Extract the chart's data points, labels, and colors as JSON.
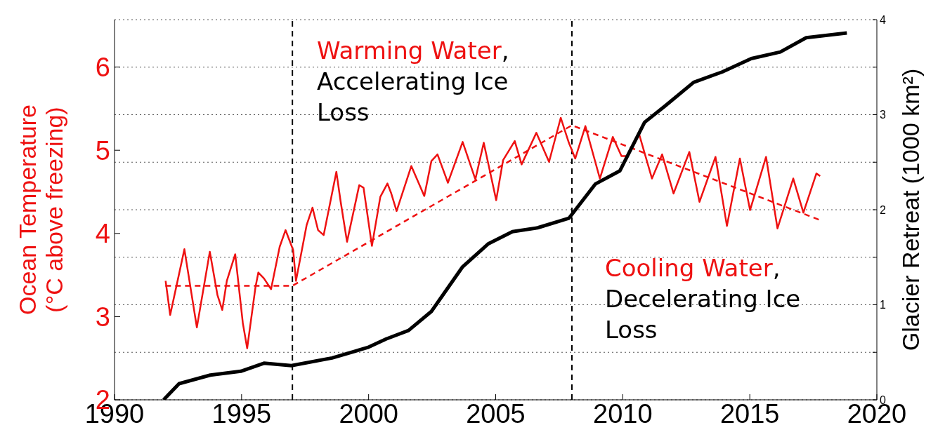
{
  "chart_data": {
    "type": "line",
    "ylabel": "Ocean Temperature\n(°C above freezing)",
    "y2label": "Glacier Retreat (1000 km²)",
    "xlim": [
      1990,
      2020
    ],
    "xticks": [
      1990,
      1995,
      2000,
      2005,
      2010,
      2015,
      2020
    ],
    "ylim": [
      2,
      6.57
    ],
    "yticks": [
      2,
      3,
      4,
      5,
      6
    ],
    "y2lim": [
      0,
      4
    ],
    "y2ticks": [
      0,
      {
        "value": 0.5,
        "label": null
      },
      1,
      {
        "value": 1.5,
        "label": null
      },
      2,
      {
        "value": 2.5,
        "label": null
      },
      3,
      {
        "value": 3.5,
        "label": null
      },
      4
    ],
    "grid": "y",
    "line_style": "solid",
    "series": [
      {
        "color": "#ee1111",
        "x": [
          1992.01,
          1992.19,
          1992.75,
          1993.24,
          1993.75,
          1994.05,
          1994.24,
          1994.42,
          1994.75,
          1995.05,
          1995.22,
          1995.55,
          1995.66,
          1995.88,
          1996.16,
          1996.5,
          1996.73,
          1997.03,
          1997.14,
          1997.56,
          1997.79,
          1998.01,
          1998.23,
          1998.73,
          1998.9,
          1999.15,
          1999.63,
          1999.8,
          2000.13,
          2000.46,
          2000.74,
          2000.88,
          2001.1,
          2001.68,
          2002.19,
          2002.47,
          2002.71,
          2003.12,
          2003.7,
          2004.2,
          2004.53,
          2005.02,
          2005.29,
          2005.75,
          2006.02,
          2006.6,
          2007.1,
          2007.56,
          2007.88,
          2008.13,
          2008.53,
          2009.1,
          2009.61,
          2009.95,
          2010.18,
          2010.63,
          2011.15,
          2011.55,
          2012.0,
          2012.62,
          2013.02,
          2013.65,
          2014.1,
          2014.61,
          2015.01,
          2015.64,
          2016.09,
          2016.71,
          2017.11,
          2017.62,
          2017.77
        ],
        "values": [
          3.43,
          3.02,
          3.81,
          2.87,
          3.78,
          3.26,
          3.08,
          3.43,
          3.75,
          2.92,
          2.62,
          3.36,
          3.53,
          3.46,
          3.33,
          3.84,
          4.04,
          3.8,
          3.43,
          4.1,
          4.31,
          4.04,
          3.98,
          4.74,
          4.38,
          3.9,
          4.58,
          4.55,
          3.85,
          4.44,
          4.6,
          4.49,
          4.27,
          4.81,
          4.45,
          4.87,
          4.95,
          4.61,
          5.1,
          4.65,
          5.09,
          4.4,
          4.88,
          5.11,
          4.83,
          5.21,
          4.86,
          5.39,
          5.09,
          4.9,
          5.29,
          4.66,
          5.16,
          4.93,
          4.93,
          5.21,
          4.66,
          4.95,
          4.48,
          4.98,
          4.38,
          4.92,
          4.09,
          4.9,
          4.28,
          4.92,
          4.06,
          4.66,
          4.25,
          4.72,
          4.69
        ]
      },
      {
        "color": "#ee1111",
        "line_style": "dashed",
        "x": [
          1992.0,
          1997.0,
          2008.0,
          2017.77
        ],
        "values": [
          3.37,
          3.37,
          5.3,
          4.16
        ]
      },
      {
        "color": "#000000",
        "axis": "y2",
        "x": [
          1991.93,
          1992.54,
          1993.77,
          1994.97,
          1995.88,
          1996.96,
          1998.56,
          1999.96,
          2000.69,
          2001.57,
          2002.47,
          2003.7,
          2004.7,
          2005.66,
          2006.65,
          2007.88,
          2008.92,
          2009.89,
          2010.86,
          2011.66,
          2012.79,
          2013.92,
          2015.06,
          2016.2,
          2017.22,
          2018.82
        ],
        "values": [
          0.0,
          0.17,
          0.26,
          0.3,
          0.385,
          0.36,
          0.44,
          0.55,
          0.64,
          0.73,
          0.93,
          1.4,
          1.64,
          1.77,
          1.81,
          1.91,
          2.27,
          2.41,
          2.92,
          3.09,
          3.34,
          3.45,
          3.59,
          3.66,
          3.81,
          3.86
        ]
      }
    ],
    "ref_lines": [
      {
        "axis": "x",
        "value": 1997,
        "color": "#000000",
        "line_style": "dashed"
      },
      {
        "axis": "x",
        "value": 2008,
        "color": "#000000",
        "line_style": "dashed"
      }
    ],
    "annotations": [
      "Warming Water,\nAccelerating Ice\nLoss",
      "Cooling Water,\nDecelerating Ice\nLoss"
    ]
  }
}
